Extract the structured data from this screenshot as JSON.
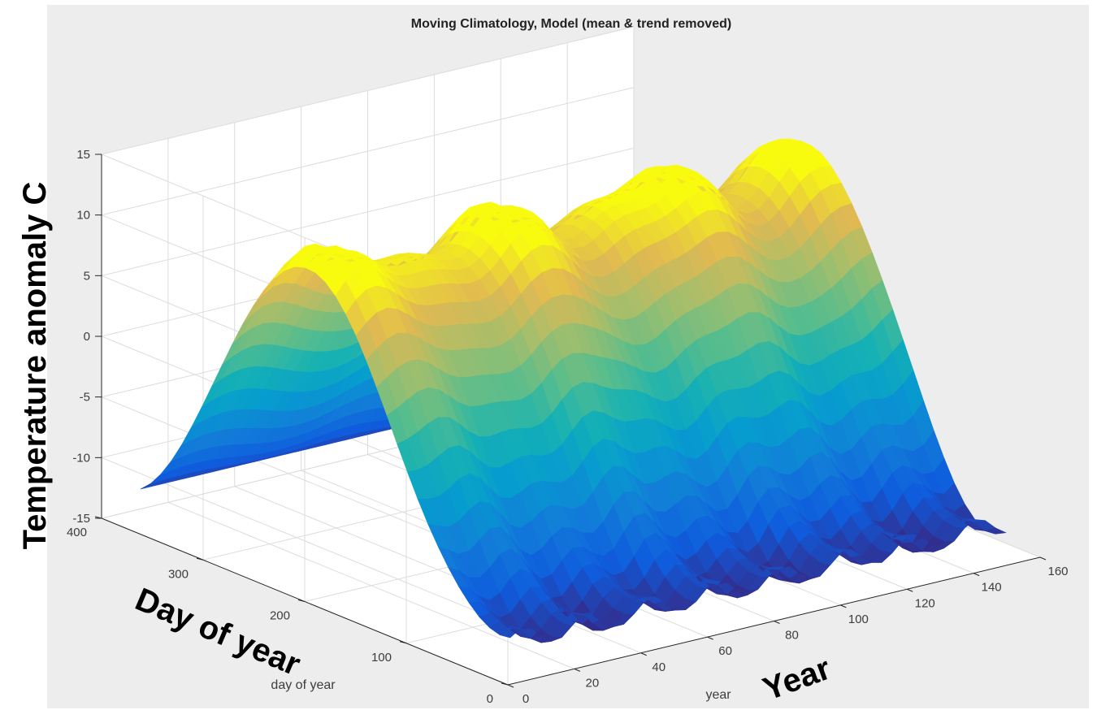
{
  "chart_data": {
    "type": "surface3d",
    "title": "Moving Climatology, Model (mean & trend removed)",
    "xlabel": "year",
    "ylabel": "day of year",
    "zlabel": "",
    "annotations": {
      "z_axis_overlay": "Temperature anomaly C",
      "y_axis_overlay": "Day of year",
      "x_axis_overlay": "Year"
    },
    "xlim": [
      0,
      160
    ],
    "ylim": [
      0,
      400
    ],
    "zlim": [
      -15,
      15
    ],
    "x_ticks": [
      "0",
      "20",
      "40",
      "60",
      "80",
      "100",
      "120",
      "140",
      "160"
    ],
    "y_ticks": [
      "0",
      "100",
      "200",
      "300",
      "400"
    ],
    "z_ticks": [
      "-15",
      "-10",
      "-5",
      "0",
      "5",
      "10",
      "15"
    ],
    "x_tick_values": [
      0,
      20,
      40,
      60,
      80,
      100,
      120,
      140,
      160
    ],
    "y_tick_values": [
      0,
      100,
      200,
      300,
      400
    ],
    "z_tick_values": [
      -15,
      -10,
      -5,
      0,
      5,
      10,
      15
    ],
    "grid": true,
    "colormap": "parula",
    "surface": {
      "x_range": [
        1,
        150
      ],
      "y_range": [
        1,
        365
      ],
      "seasonal_amplitude": 12,
      "peak_day": 200,
      "z_min_approx": -13,
      "z_max_approx": 12
    },
    "colors": {
      "background": "#ededed",
      "axis_box": "#ffffff",
      "low": "#352a87",
      "high": "#f9fb0e"
    }
  }
}
